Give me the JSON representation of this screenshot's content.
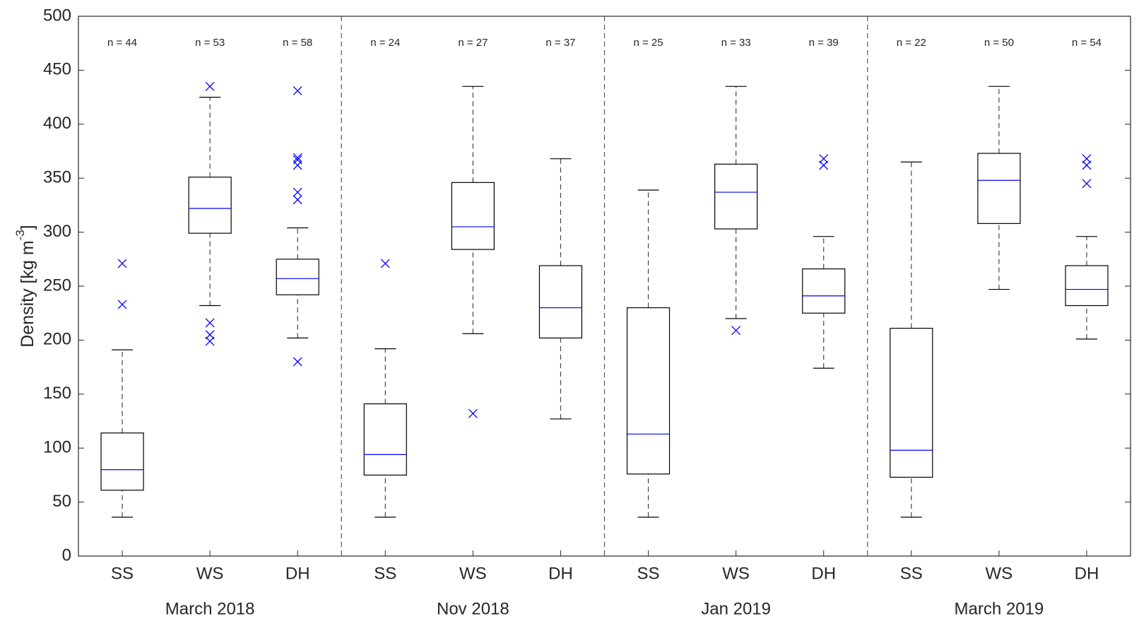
{
  "chart_data": {
    "type": "box",
    "y_label": [
      "Density [kg m",
      "-3",
      "]"
    ],
    "categories": [
      "SS",
      "WS",
      "DH",
      "SS",
      "WS",
      "DH",
      "SS",
      "WS",
      "DH",
      "SS",
      "WS",
      "DH"
    ],
    "groups": [
      "March 2018",
      "Nov 2018",
      "Jan 2019",
      "March 2019"
    ],
    "box_color": "#000000",
    "median_color": "#0000ff",
    "outlier_color": "#0000ff",
    "ylim": [
      0,
      500
    ],
    "yticks": [
      0,
      50,
      100,
      150,
      200,
      250,
      300,
      350,
      400,
      450,
      500
    ],
    "boxes": [
      {
        "low": 36,
        "q1": 61,
        "median": 80,
        "q3": 114,
        "high": 191,
        "outliers": [
          271,
          233
        ],
        "n": "n = 44"
      },
      {
        "low": 232,
        "q1": 299,
        "median": 322,
        "q3": 351,
        "high": 425,
        "outliers": [
          435,
          216,
          205,
          199
        ],
        "n": "n = 53"
      },
      {
        "low": 202,
        "q1": 242,
        "median": 257,
        "q3": 275,
        "high": 304,
        "outliers": [
          431,
          369,
          367,
          362,
          337,
          330,
          180
        ],
        "n": "n = 58"
      },
      {
        "low": 36,
        "q1": 75,
        "median": 94,
        "q3": 141,
        "high": 192,
        "outliers": [
          271
        ],
        "n": "n = 24"
      },
      {
        "low": 206,
        "q1": 284,
        "median": 305,
        "q3": 346,
        "high": 435,
        "outliers": [
          132
        ],
        "n": "n = 27"
      },
      {
        "low": 127,
        "q1": 202,
        "median": 230,
        "q3": 269,
        "high": 368,
        "outliers": [],
        "n": "n = 37"
      },
      {
        "low": 36,
        "q1": 76,
        "median": 113,
        "q3": 230,
        "high": 339,
        "outliers": [],
        "n": "n = 25"
      },
      {
        "low": 220,
        "q1": 303,
        "median": 337,
        "q3": 363,
        "high": 435,
        "outliers": [
          209
        ],
        "n": "n = 33"
      },
      {
        "low": 174,
        "q1": 225,
        "median": 241,
        "q3": 266,
        "high": 296,
        "outliers": [
          368,
          362
        ],
        "n": "n = 39"
      },
      {
        "low": 36,
        "q1": 73,
        "median": 98,
        "q3": 211,
        "high": 365,
        "outliers": [],
        "n": "n = 22"
      },
      {
        "low": 247,
        "q1": 308,
        "median": 348,
        "q3": 373,
        "high": 435,
        "outliers": [],
        "n": "n = 50"
      },
      {
        "low": 201,
        "q1": 232,
        "median": 247,
        "q3": 269,
        "high": 296,
        "outliers": [
          368,
          362,
          345
        ],
        "n": "n = 54"
      }
    ]
  }
}
